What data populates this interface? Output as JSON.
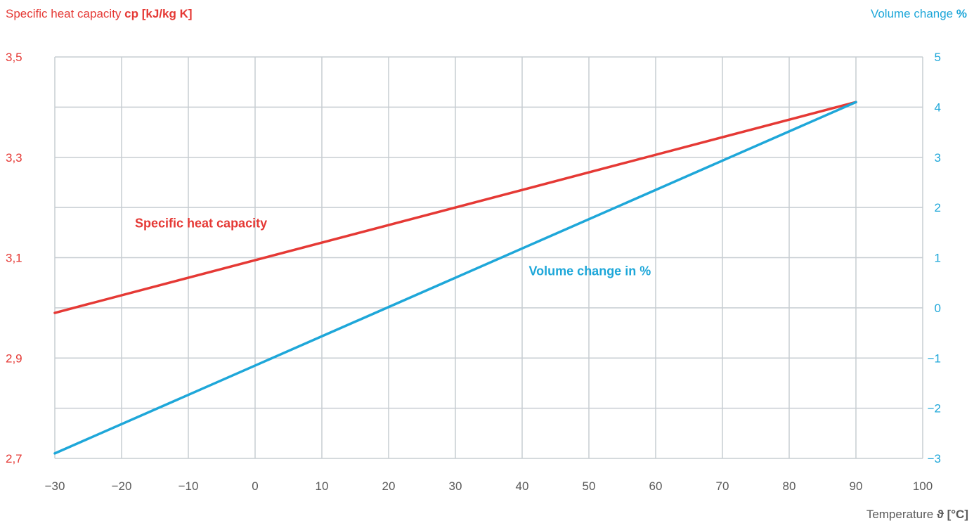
{
  "colors": {
    "heat": "#e53935",
    "volume": "#1ea7d9",
    "grid": "#c7cdd2",
    "tick": "#5a5a5a",
    "background": "#ffffff"
  },
  "titles": {
    "left_prefix": "Specific heat capacity",
    "left_unit": "cp [kJ/kg K]",
    "right_prefix": "Volume change",
    "right_unit": "%",
    "x_prefix": "Temperature",
    "x_unit": "ϑ [°C]"
  },
  "chart_data": {
    "type": "line",
    "x": {
      "label": "Temperature ϑ [°C]",
      "ticks": [
        -30,
        -20,
        -10,
        0,
        10,
        20,
        30,
        40,
        50,
        60,
        70,
        80,
        90,
        100
      ],
      "tick_labels": [
        "−30",
        "−20",
        "−10",
        "0",
        "10",
        "20",
        "30",
        "40",
        "50",
        "60",
        "70",
        "80",
        "90",
        "100"
      ],
      "range": [
        -30,
        100
      ]
    },
    "y_left": {
      "label": "Specific heat capacity cp [kJ/kg K]",
      "range": [
        2.7,
        3.5
      ],
      "ticks": [
        2.7,
        2.9,
        3.1,
        3.3,
        3.5
      ],
      "tick_labels": [
        "2,7",
        "2,9",
        "3,1",
        "3,3",
        "3,5"
      ],
      "minor_grid": [
        2.8,
        3.0,
        3.2,
        3.4
      ]
    },
    "y_right": {
      "label": "Volume change %",
      "range": [
        -3,
        5
      ],
      "ticks": [
        -3,
        -2,
        -1,
        0,
        1,
        2,
        3,
        4,
        5
      ],
      "tick_labels": [
        "−3",
        "−2",
        "−1",
        "0",
        "1",
        "2",
        "3",
        "4",
        "5"
      ]
    },
    "grid": true,
    "series": [
      {
        "name": "Specific heat capacity",
        "axis": "left",
        "color": "#e53935",
        "points": [
          [
            -30,
            2.99
          ],
          [
            90,
            3.41
          ]
        ]
      },
      {
        "name": "Volume change in %",
        "axis": "right",
        "color": "#1ea7d9",
        "points": [
          [
            -30,
            -2.9
          ],
          [
            90,
            4.1
          ]
        ]
      }
    ],
    "annotations": [
      {
        "text": "Specific heat capacity",
        "series": 0,
        "x": -18,
        "y": 3.16
      },
      {
        "text": "Volume change in %",
        "series": 1,
        "x": 41,
        "y": 0.65
      }
    ]
  }
}
